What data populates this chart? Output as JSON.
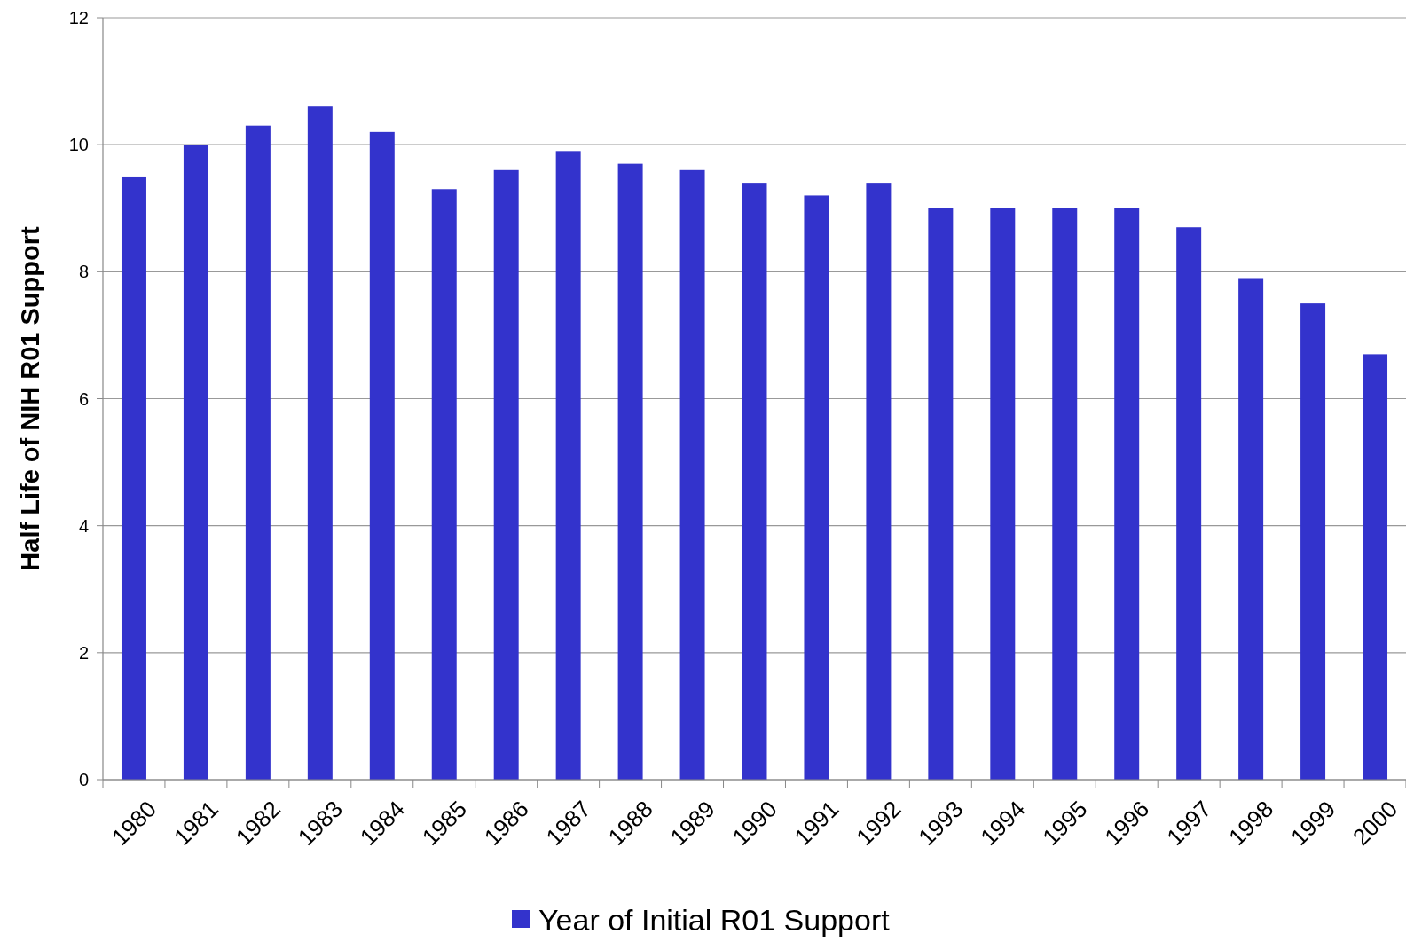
{
  "chart_data": {
    "type": "bar",
    "ylabel": "Half Life of NIH R01 Support",
    "categories": [
      "1980",
      "1981",
      "1982",
      "1983",
      "1984",
      "1985",
      "1986",
      "1987",
      "1988",
      "1989",
      "1990",
      "1991",
      "1992",
      "1993",
      "1994",
      "1995",
      "1996",
      "1997",
      "1998",
      "1999",
      "2000"
    ],
    "series": [
      {
        "name": "Year of Initial R01 Support",
        "color": "#3333cc",
        "values": [
          9.5,
          10.0,
          10.3,
          10.6,
          10.2,
          9.3,
          9.6,
          9.9,
          9.7,
          9.6,
          9.4,
          9.2,
          9.4,
          9.0,
          9.0,
          9.0,
          9.0,
          8.7,
          7.9,
          7.5,
          6.7
        ]
      }
    ],
    "ylim": [
      0,
      12
    ],
    "yticks": [
      0,
      2,
      4,
      6,
      8,
      10,
      12
    ],
    "grid": "y",
    "legend": "bottom"
  }
}
